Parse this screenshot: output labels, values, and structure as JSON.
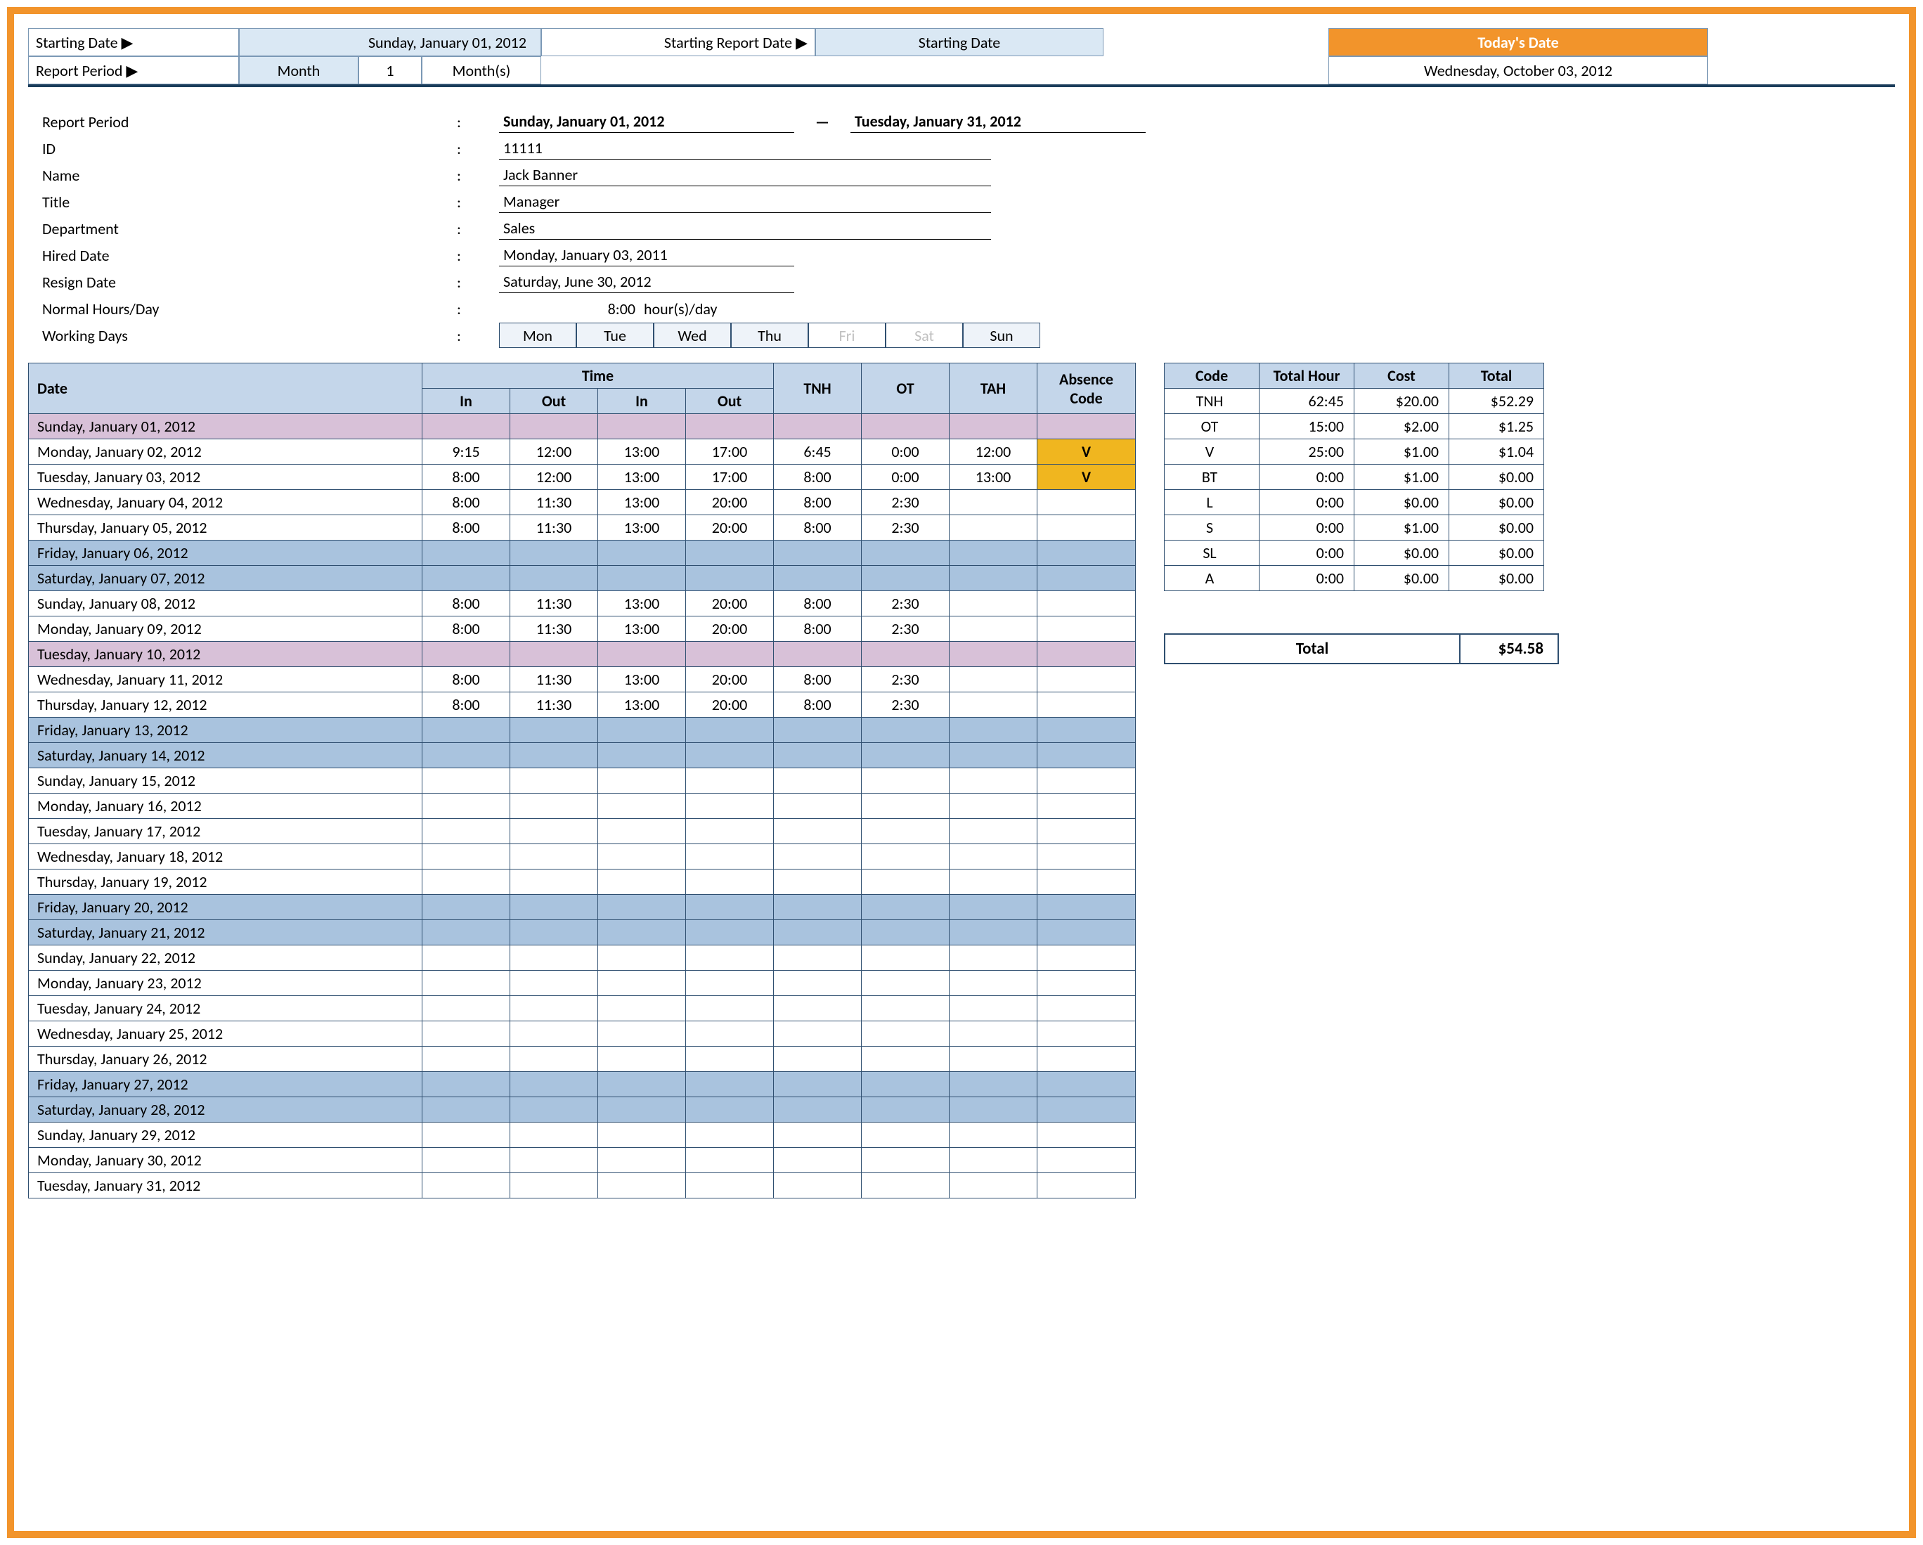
{
  "colors": {
    "frame_border": "#f2942b",
    "header_blue": "#c4d6ea",
    "light_blue": "#dae8f4",
    "weekend_row": "#a9c3de",
    "holiday_row": "#d8c1d8",
    "absence_v": "#f0b61f",
    "table_border": "#2f4f70",
    "hr": "#1a3c5a"
  },
  "topbar": {
    "r1": {
      "starting_date_label": "Starting Date ▶",
      "starting_date_value": "Sunday, January 01, 2012",
      "starting_report_label": "Starting Report Date ▶",
      "starting_report_value": "Starting Date",
      "today_label": "Today's Date"
    },
    "r2": {
      "report_period_label": "Report Period ▶",
      "unit": "Month",
      "qty": "1",
      "unit_plural": "Month(s)",
      "today_value": "Wednesday, October 03, 2012"
    }
  },
  "info": {
    "report_period_label": "Report Period",
    "report_period_start": "Sunday, January 01, 2012",
    "report_period_end": "Tuesday, January 31, 2012",
    "id_label": "ID",
    "id_value": "11111",
    "name_label": "Name",
    "name_value": "Jack Banner",
    "title_label": "Title",
    "title_value": "Manager",
    "dept_label": "Department",
    "dept_value": "Sales",
    "hired_label": "Hired Date",
    "hired_value": "Monday, January 03, 2011",
    "resign_label": "Resign Date",
    "resign_value": "Saturday, June 30, 2012",
    "normalhrs_label": "Normal Hours/Day",
    "normalhrs_val": "8:00",
    "normalhrs_unit": "hour(s)/day",
    "workdays_label": "Working Days",
    "workdays": [
      {
        "d": "Mon",
        "on": true
      },
      {
        "d": "Tue",
        "on": true
      },
      {
        "d": "Wed",
        "on": true
      },
      {
        "d": "Thu",
        "on": true
      },
      {
        "d": "Fri",
        "on": false
      },
      {
        "d": "Sat",
        "on": false
      },
      {
        "d": "Sun",
        "on": true
      }
    ]
  },
  "headers": {
    "date": "Date",
    "time": "Time",
    "in": "In",
    "out": "Out",
    "tnh": "TNH",
    "ot": "OT",
    "tah": "TAH",
    "abs": "Absence Code",
    "code": "Code",
    "total_hour": "Total Hour",
    "cost": "Cost",
    "total": "Total"
  },
  "timesheet": [
    {
      "date": "Sunday, January 01, 2012",
      "type": "holiday"
    },
    {
      "date": "Monday, January 02, 2012",
      "in1": "9:15",
      "out1": "12:00",
      "in2": "13:00",
      "out2": "17:00",
      "tnh": "6:45",
      "ot": "0:00",
      "tah": "12:00",
      "abs": "V"
    },
    {
      "date": "Tuesday, January 03, 2012",
      "in1": "8:00",
      "out1": "12:00",
      "in2": "13:00",
      "out2": "17:00",
      "tnh": "8:00",
      "ot": "0:00",
      "tah": "13:00",
      "abs": "V"
    },
    {
      "date": "Wednesday, January 04, 2012",
      "in1": "8:00",
      "out1": "11:30",
      "in2": "13:00",
      "out2": "20:00",
      "tnh": "8:00",
      "ot": "2:30"
    },
    {
      "date": "Thursday, January 05, 2012",
      "in1": "8:00",
      "out1": "11:30",
      "in2": "13:00",
      "out2": "20:00",
      "tnh": "8:00",
      "ot": "2:30"
    },
    {
      "date": "Friday, January 06, 2012",
      "type": "weekend"
    },
    {
      "date": "Saturday, January 07, 2012",
      "type": "weekend"
    },
    {
      "date": "Sunday, January 08, 2012",
      "in1": "8:00",
      "out1": "11:30",
      "in2": "13:00",
      "out2": "20:00",
      "tnh": "8:00",
      "ot": "2:30"
    },
    {
      "date": "Monday, January 09, 2012",
      "in1": "8:00",
      "out1": "11:30",
      "in2": "13:00",
      "out2": "20:00",
      "tnh": "8:00",
      "ot": "2:30"
    },
    {
      "date": "Tuesday, January 10, 2012",
      "type": "holiday"
    },
    {
      "date": "Wednesday, January 11, 2012",
      "in1": "8:00",
      "out1": "11:30",
      "in2": "13:00",
      "out2": "20:00",
      "tnh": "8:00",
      "ot": "2:30"
    },
    {
      "date": "Thursday, January 12, 2012",
      "in1": "8:00",
      "out1": "11:30",
      "in2": "13:00",
      "out2": "20:00",
      "tnh": "8:00",
      "ot": "2:30"
    },
    {
      "date": "Friday, January 13, 2012",
      "type": "weekend"
    },
    {
      "date": "Saturday, January 14, 2012",
      "type": "weekend"
    },
    {
      "date": "Sunday, January 15, 2012"
    },
    {
      "date": "Monday, January 16, 2012"
    },
    {
      "date": "Tuesday, January 17, 2012"
    },
    {
      "date": "Wednesday, January 18, 2012"
    },
    {
      "date": "Thursday, January 19, 2012"
    },
    {
      "date": "Friday, January 20, 2012",
      "type": "weekend"
    },
    {
      "date": "Saturday, January 21, 2012",
      "type": "weekend"
    },
    {
      "date": "Sunday, January 22, 2012"
    },
    {
      "date": "Monday, January 23, 2012"
    },
    {
      "date": "Tuesday, January 24, 2012"
    },
    {
      "date": "Wednesday, January 25, 2012"
    },
    {
      "date": "Thursday, January 26, 2012"
    },
    {
      "date": "Friday, January 27, 2012",
      "type": "weekend"
    },
    {
      "date": "Saturday, January 28, 2012",
      "type": "weekend"
    },
    {
      "date": "Sunday, January 29, 2012"
    },
    {
      "date": "Monday, January 30, 2012"
    },
    {
      "date": "Tuesday, January 31, 2012"
    }
  ],
  "summary": [
    {
      "code": "TNH",
      "hour": "62:45",
      "cost": "$20.00",
      "total": "$52.29"
    },
    {
      "code": "OT",
      "hour": "15:00",
      "cost": "$2.00",
      "total": "$1.25"
    },
    {
      "code": "V",
      "hour": "25:00",
      "cost": "$1.00",
      "total": "$1.04"
    },
    {
      "code": "BT",
      "hour": "0:00",
      "cost": "$1.00",
      "total": "$0.00"
    },
    {
      "code": "L",
      "hour": "0:00",
      "cost": "$0.00",
      "total": "$0.00"
    },
    {
      "code": "S",
      "hour": "0:00",
      "cost": "$1.00",
      "total": "$0.00"
    },
    {
      "code": "SL",
      "hour": "0:00",
      "cost": "$0.00",
      "total": "$0.00"
    },
    {
      "code": "A",
      "hour": "0:00",
      "cost": "$0.00",
      "total": "$0.00"
    }
  ],
  "grand_total": {
    "label": "Total",
    "value": "$54.58"
  }
}
